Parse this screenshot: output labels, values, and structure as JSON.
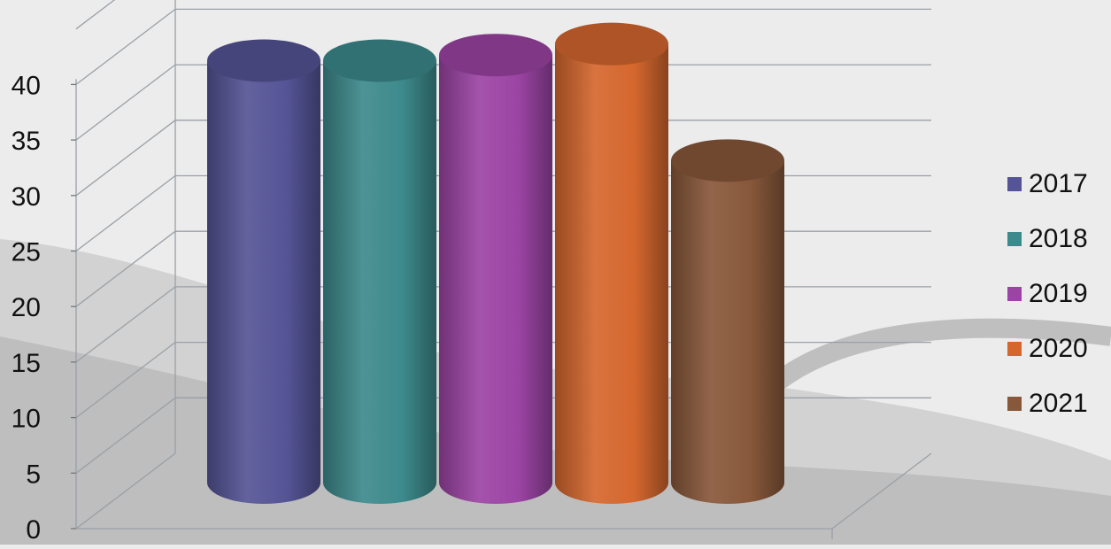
{
  "chart_data": {
    "type": "bar",
    "style": "3d-cylinder",
    "title": "",
    "xlabel": "",
    "ylabel": "",
    "ylim": [
      0,
      40
    ],
    "yticks": [
      0,
      5,
      10,
      15,
      20,
      25,
      30,
      35,
      40
    ],
    "grid": true,
    "legend_position": "right",
    "categories": [
      ""
    ],
    "series": [
      {
        "name": "2017",
        "values": [
          38
        ],
        "color": "#555496"
      },
      {
        "name": "2018",
        "values": [
          38
        ],
        "color": "#3d8a8c"
      },
      {
        "name": "2019",
        "values": [
          38.5
        ],
        "color": "#9c44a4"
      },
      {
        "name": "2020",
        "values": [
          39.5
        ],
        "color": "#d5672e"
      },
      {
        "name": "2021",
        "values": [
          29
        ],
        "color": "#88583a"
      }
    ]
  },
  "legend": {
    "items": [
      {
        "label": "2017",
        "color": "#555496"
      },
      {
        "label": "2018",
        "color": "#3d8a8c"
      },
      {
        "label": "2019",
        "color": "#9c44a4"
      },
      {
        "label": "2020",
        "color": "#d5672e"
      },
      {
        "label": "2021",
        "color": "#88583a"
      }
    ]
  }
}
